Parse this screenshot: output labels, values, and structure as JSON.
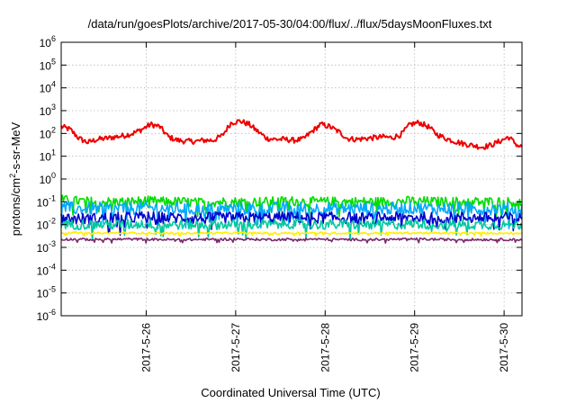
{
  "chart_data": {
    "type": "line",
    "title": "/data/run/goesPlots/archive/2017-05-30/04:00/flux/../flux/5daysMoonFluxes.txt",
    "xlabel": "Coordinated Universal Time (UTC)",
    "ylabel_main": "protons/cm",
    "ylabel_sup": "2",
    "ylabel_rest": "-s-sr-MeV",
    "y_scale": "log",
    "ylim": [
      1e-06,
      1000000.0
    ],
    "xlim_days": [
      25.05,
      30.2
    ],
    "y_ticks": [
      {
        "base": "10",
        "exp": "-6"
      },
      {
        "base": "10",
        "exp": "-5"
      },
      {
        "base": "10",
        "exp": "-4"
      },
      {
        "base": "10",
        "exp": "-3"
      },
      {
        "base": "10",
        "exp": "-2"
      },
      {
        "base": "10",
        "exp": "-1"
      },
      {
        "base": "10",
        "exp": "0"
      },
      {
        "base": "10",
        "exp": "1"
      },
      {
        "base": "10",
        "exp": "2"
      },
      {
        "base": "10",
        "exp": "3"
      },
      {
        "base": "10",
        "exp": "4"
      },
      {
        "base": "10",
        "exp": "5"
      },
      {
        "base": "10",
        "exp": "6"
      }
    ],
    "x_ticks": [
      {
        "label": "2017-5-26",
        "day": 26
      },
      {
        "label": "2017-5-27",
        "day": 27
      },
      {
        "label": "2017-5-28",
        "day": 28
      },
      {
        "label": "2017-5-29",
        "day": 29
      },
      {
        "label": "2017-5-30",
        "day": 30
      }
    ],
    "grid": true,
    "legend": "none",
    "series": [
      {
        "color": "#ee0000",
        "x": [
          25.05,
          25.15,
          25.25,
          25.35,
          25.45,
          25.55,
          25.65,
          25.75,
          25.85,
          25.95,
          26.05,
          26.15,
          26.25,
          26.35,
          26.45,
          26.55,
          26.65,
          26.75,
          26.85,
          26.95,
          27.05,
          27.15,
          27.25,
          27.35,
          27.45,
          27.55,
          27.65,
          27.75,
          27.85,
          27.95,
          28.05,
          28.15,
          28.25,
          28.35,
          28.45,
          28.55,
          28.65,
          28.75,
          28.85,
          28.95,
          29.05,
          29.15,
          29.25,
          29.35,
          29.45,
          29.55,
          29.65,
          29.75,
          29.85,
          29.95,
          30.05,
          30.15,
          30.2
        ],
        "y": [
          200,
          150,
          60,
          40,
          55,
          60,
          70,
          80,
          100,
          150,
          250,
          200,
          70,
          50,
          45,
          45,
          50,
          50,
          80,
          300,
          350,
          250,
          120,
          60,
          55,
          55,
          50,
          55,
          120,
          250,
          200,
          120,
          60,
          55,
          60,
          65,
          70,
          65,
          90,
          250,
          300,
          200,
          90,
          60,
          45,
          35,
          30,
          25,
          30,
          45,
          70,
          30,
          25
        ],
        "noise": 0.12
      },
      {
        "color": "#00dd00",
        "x": [
          25.05,
          25.2,
          25.4,
          25.6,
          25.8,
          26.0,
          26.2,
          26.4,
          26.6,
          26.8,
          27.0,
          27.2,
          27.4,
          27.6,
          27.8,
          28.0,
          28.2,
          28.4,
          28.6,
          28.8,
          29.0,
          29.2,
          29.4,
          29.6,
          29.8,
          30.0,
          30.2
        ],
        "y": [
          0.12,
          0.11,
          0.1,
          0.1,
          0.1,
          0.11,
          0.1,
          0.1,
          0.09,
          0.1,
          0.1,
          0.1,
          0.1,
          0.11,
          0.1,
          0.1,
          0.1,
          0.1,
          0.1,
          0.1,
          0.11,
          0.1,
          0.1,
          0.1,
          0.1,
          0.1,
          0.09
        ],
        "noise": 0.22
      },
      {
        "color": "#00aaff",
        "x": [
          25.05,
          25.2,
          25.4,
          25.6,
          25.8,
          26.0,
          26.2,
          26.4,
          26.6,
          26.8,
          27.0,
          27.2,
          27.4,
          27.6,
          27.8,
          28.0,
          28.2,
          28.4,
          28.6,
          28.8,
          29.0,
          29.2,
          29.4,
          29.6,
          29.8,
          30.0,
          30.2
        ],
        "y": [
          0.06,
          0.05,
          0.05,
          0.05,
          0.05,
          0.055,
          0.05,
          0.05,
          0.045,
          0.05,
          0.05,
          0.05,
          0.05,
          0.055,
          0.05,
          0.05,
          0.05,
          0.05,
          0.05,
          0.05,
          0.055,
          0.05,
          0.05,
          0.05,
          0.05,
          0.05,
          0.045
        ],
        "noise": 0.28
      },
      {
        "color": "#0000cc",
        "x": [
          25.05,
          25.2,
          25.4,
          25.6,
          25.8,
          26.0,
          26.2,
          26.4,
          26.6,
          26.8,
          27.0,
          27.2,
          27.4,
          27.6,
          27.8,
          28.0,
          28.2,
          28.4,
          28.6,
          28.8,
          29.0,
          29.2,
          29.4,
          29.6,
          29.8,
          30.0,
          30.2
        ],
        "y": [
          0.02,
          0.018,
          0.018,
          0.02,
          0.02,
          0.022,
          0.02,
          0.02,
          0.018,
          0.02,
          0.02,
          0.02,
          0.02,
          0.021,
          0.02,
          0.02,
          0.02,
          0.019,
          0.02,
          0.02,
          0.021,
          0.02,
          0.02,
          0.02,
          0.02,
          0.02,
          0.018
        ],
        "noise": 0.25
      },
      {
        "color": "#00c8a0",
        "x": [
          25.05,
          25.2,
          25.4,
          25.6,
          25.8,
          26.0,
          26.2,
          26.4,
          26.6,
          26.8,
          27.0,
          27.2,
          27.4,
          27.6,
          27.8,
          28.0,
          28.2,
          28.4,
          28.6,
          28.8,
          29.0,
          29.2,
          29.4,
          29.6,
          29.8,
          30.0,
          30.2
        ],
        "y": [
          0.011,
          0.01,
          0.01,
          0.01,
          0.01,
          0.011,
          0.01,
          0.01,
          0.01,
          0.01,
          0.01,
          0.01,
          0.01,
          0.011,
          0.01,
          0.01,
          0.01,
          0.01,
          0.01,
          0.01,
          0.011,
          0.01,
          0.01,
          0.01,
          0.01,
          0.01,
          0.01
        ],
        "noise": 0.22
      },
      {
        "color": "#ffee00",
        "x": [
          25.05,
          25.4,
          25.8,
          26.2,
          26.6,
          27.0,
          27.4,
          27.8,
          28.2,
          28.6,
          29.0,
          29.4,
          29.8,
          30.2
        ],
        "y": [
          0.0045,
          0.0042,
          0.0043,
          0.0042,
          0.0042,
          0.0043,
          0.0042,
          0.0043,
          0.0042,
          0.0042,
          0.0043,
          0.0042,
          0.0042,
          0.0042
        ],
        "noise": 0.04
      },
      {
        "color": "#7a2a6a",
        "x": [
          25.05,
          25.4,
          25.8,
          26.2,
          26.6,
          27.0,
          27.4,
          27.8,
          28.2,
          28.6,
          29.0,
          29.4,
          29.8,
          30.2
        ],
        "y": [
          0.0023,
          0.0022,
          0.0023,
          0.0022,
          0.0022,
          0.0023,
          0.0022,
          0.0023,
          0.0022,
          0.0022,
          0.0023,
          0.0022,
          0.0022,
          0.0022
        ],
        "noise": 0.05
      }
    ]
  }
}
